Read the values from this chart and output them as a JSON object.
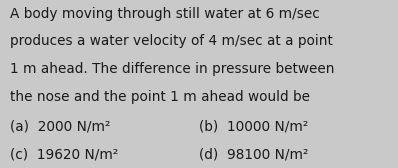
{
  "lines": [
    "A body moving through still water at 6 m/sec",
    "produces a water velocity of 4 m/sec at a point",
    "1 m ahead. The difference in pressure between",
    "the nose and the point 1 m ahead would be"
  ],
  "options_left": [
    "(a)  2000 N/m²",
    "(c)  19620 N/m²"
  ],
  "options_right": [
    "(b)  10000 N/m²",
    "(d)  98100 N/m²"
  ],
  "text_color": "#1a1a1a",
  "bg_color": "#c9c9c9",
  "font_size": 9.8,
  "option_font_size": 9.8
}
